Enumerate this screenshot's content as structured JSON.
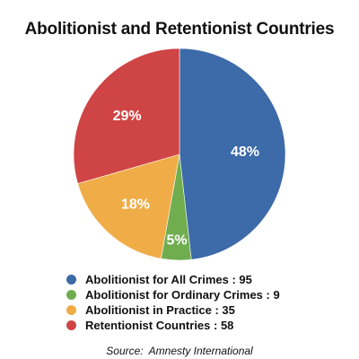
{
  "chart_data": {
    "type": "pie",
    "title": "Abolitionist and Retentionist Countries",
    "slices": [
      {
        "label": "Abolitionist for All Crimes",
        "value": 95,
        "percent_label": "48%",
        "color": "#3d6aa8"
      },
      {
        "label": "Abolitionist for Ordinary Crimes",
        "value": 9,
        "percent_label": "5%",
        "color": "#70ad4f"
      },
      {
        "label": "Abolitionist in Practice",
        "value": 35,
        "percent_label": "18%",
        "color": "#f0ad47"
      },
      {
        "label": "Retentionist Countries",
        "value": 58,
        "percent_label": "29%",
        "color": "#cf4444"
      }
    ],
    "legend": {
      "placement": "bottom",
      "separator": " : "
    },
    "source_label": "Source:",
    "source": "Amnesty International"
  }
}
